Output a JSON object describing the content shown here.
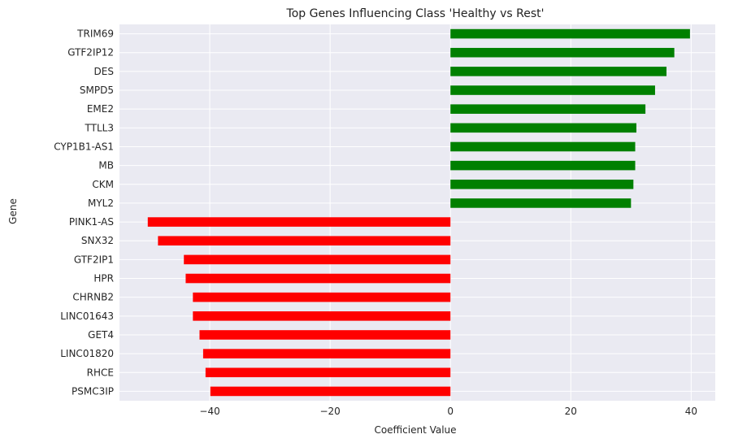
{
  "chart_data": {
    "type": "bar",
    "orientation": "horizontal",
    "title": "Top Genes Influencing Class 'Healthy vs Rest'",
    "xlabel": "Coefficient Value",
    "ylabel": "Gene",
    "xlim": [
      -55,
      44
    ],
    "xticks": [
      -40,
      -20,
      0,
      20,
      40
    ],
    "xtick_labels": [
      "−40",
      "−20",
      "0",
      "20",
      "40"
    ],
    "grid": true,
    "background": "#eaeaf2",
    "colors": {
      "positive": "#008000",
      "negative": "#ff0000"
    },
    "categories": [
      "TRIM69",
      "GTF2IP12",
      "DES",
      "SMPD5",
      "EME2",
      "TTLL3",
      "CYP1B1-AS1",
      "MB",
      "CKM",
      "MYL2",
      "PINK1-AS",
      "SNX32",
      "GTF2IP1",
      "HPR",
      "CHRNB2",
      "LINC01643",
      "GET4",
      "LINC01820",
      "RHCE",
      "PSMC3IP"
    ],
    "values": [
      39.8,
      37.2,
      35.9,
      34.0,
      32.4,
      30.9,
      30.7,
      30.7,
      30.4,
      30.0,
      -50.3,
      -48.6,
      -44.3,
      -44.0,
      -42.8,
      -42.8,
      -41.7,
      -41.1,
      -40.7,
      -39.9
    ]
  }
}
